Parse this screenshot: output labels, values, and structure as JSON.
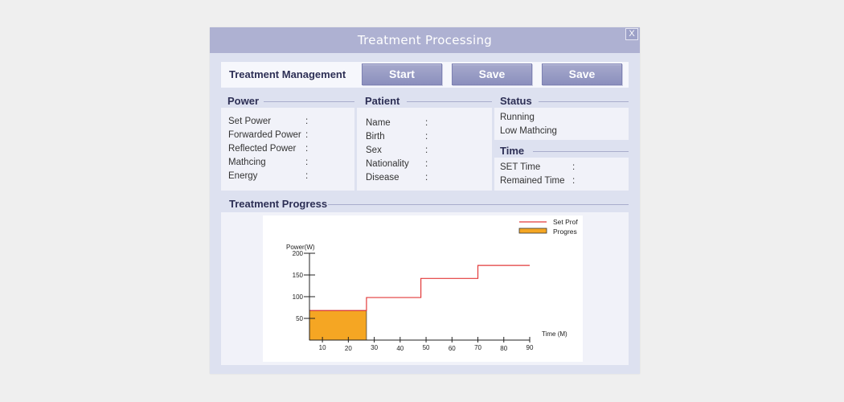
{
  "window": {
    "title": "Treatment Processing",
    "close_label": "X"
  },
  "management": {
    "title": "Treatment Management",
    "buttons": [
      {
        "label": "Start"
      },
      {
        "label": "Save"
      },
      {
        "label": "Save"
      }
    ]
  },
  "power": {
    "header": "Power",
    "rows": [
      {
        "label": "Set Power",
        "value": ":"
      },
      {
        "label": "Forwarded Power",
        "value": ":"
      },
      {
        "label": "Reflected Power",
        "value": ":"
      },
      {
        "label": "Mathcing",
        "value": ":"
      },
      {
        "label": "Energy",
        "value": ":"
      }
    ]
  },
  "patient": {
    "header": "Patient",
    "rows": [
      {
        "label": "Name",
        "value": ":"
      },
      {
        "label": "Birth",
        "value": ":"
      },
      {
        "label": "Sex",
        "value": ":"
      },
      {
        "label": "Nationality",
        "value": ":"
      },
      {
        "label": "Disease",
        "value": ":"
      }
    ]
  },
  "status": {
    "header": "Status",
    "items": [
      "Running",
      "Low Mathcing"
    ]
  },
  "time": {
    "header": "Time",
    "rows": [
      {
        "label": "SET Time",
        "value": ":"
      },
      {
        "label": "Remained Time",
        "value": ":"
      }
    ]
  },
  "progress": {
    "header": "Treatment Progress"
  },
  "colors": {
    "set_profile_line": "#e23a3a",
    "progress_fill": "#f5a623",
    "accent": "#aeb1d2"
  },
  "chart_data": {
    "type": "line",
    "ylabel": "Power(W)",
    "xlabel": "Time  (M)",
    "xlim": [
      5,
      90
    ],
    "ylim": [
      0,
      200
    ],
    "x_ticks": [
      10,
      20,
      30,
      40,
      50,
      60,
      70,
      80,
      90
    ],
    "y_ticks": [
      50,
      100,
      150,
      200
    ],
    "legend_position": "top-right",
    "series": [
      {
        "name": "Set Prof",
        "type": "step-line",
        "x": [
          5,
          27,
          27,
          48,
          48,
          70,
          70,
          90
        ],
        "y": [
          68,
          68,
          98,
          98,
          142,
          142,
          172,
          172
        ]
      },
      {
        "name": "Progres",
        "type": "area",
        "x": [
          5,
          27
        ],
        "y": [
          68,
          68
        ]
      }
    ]
  }
}
